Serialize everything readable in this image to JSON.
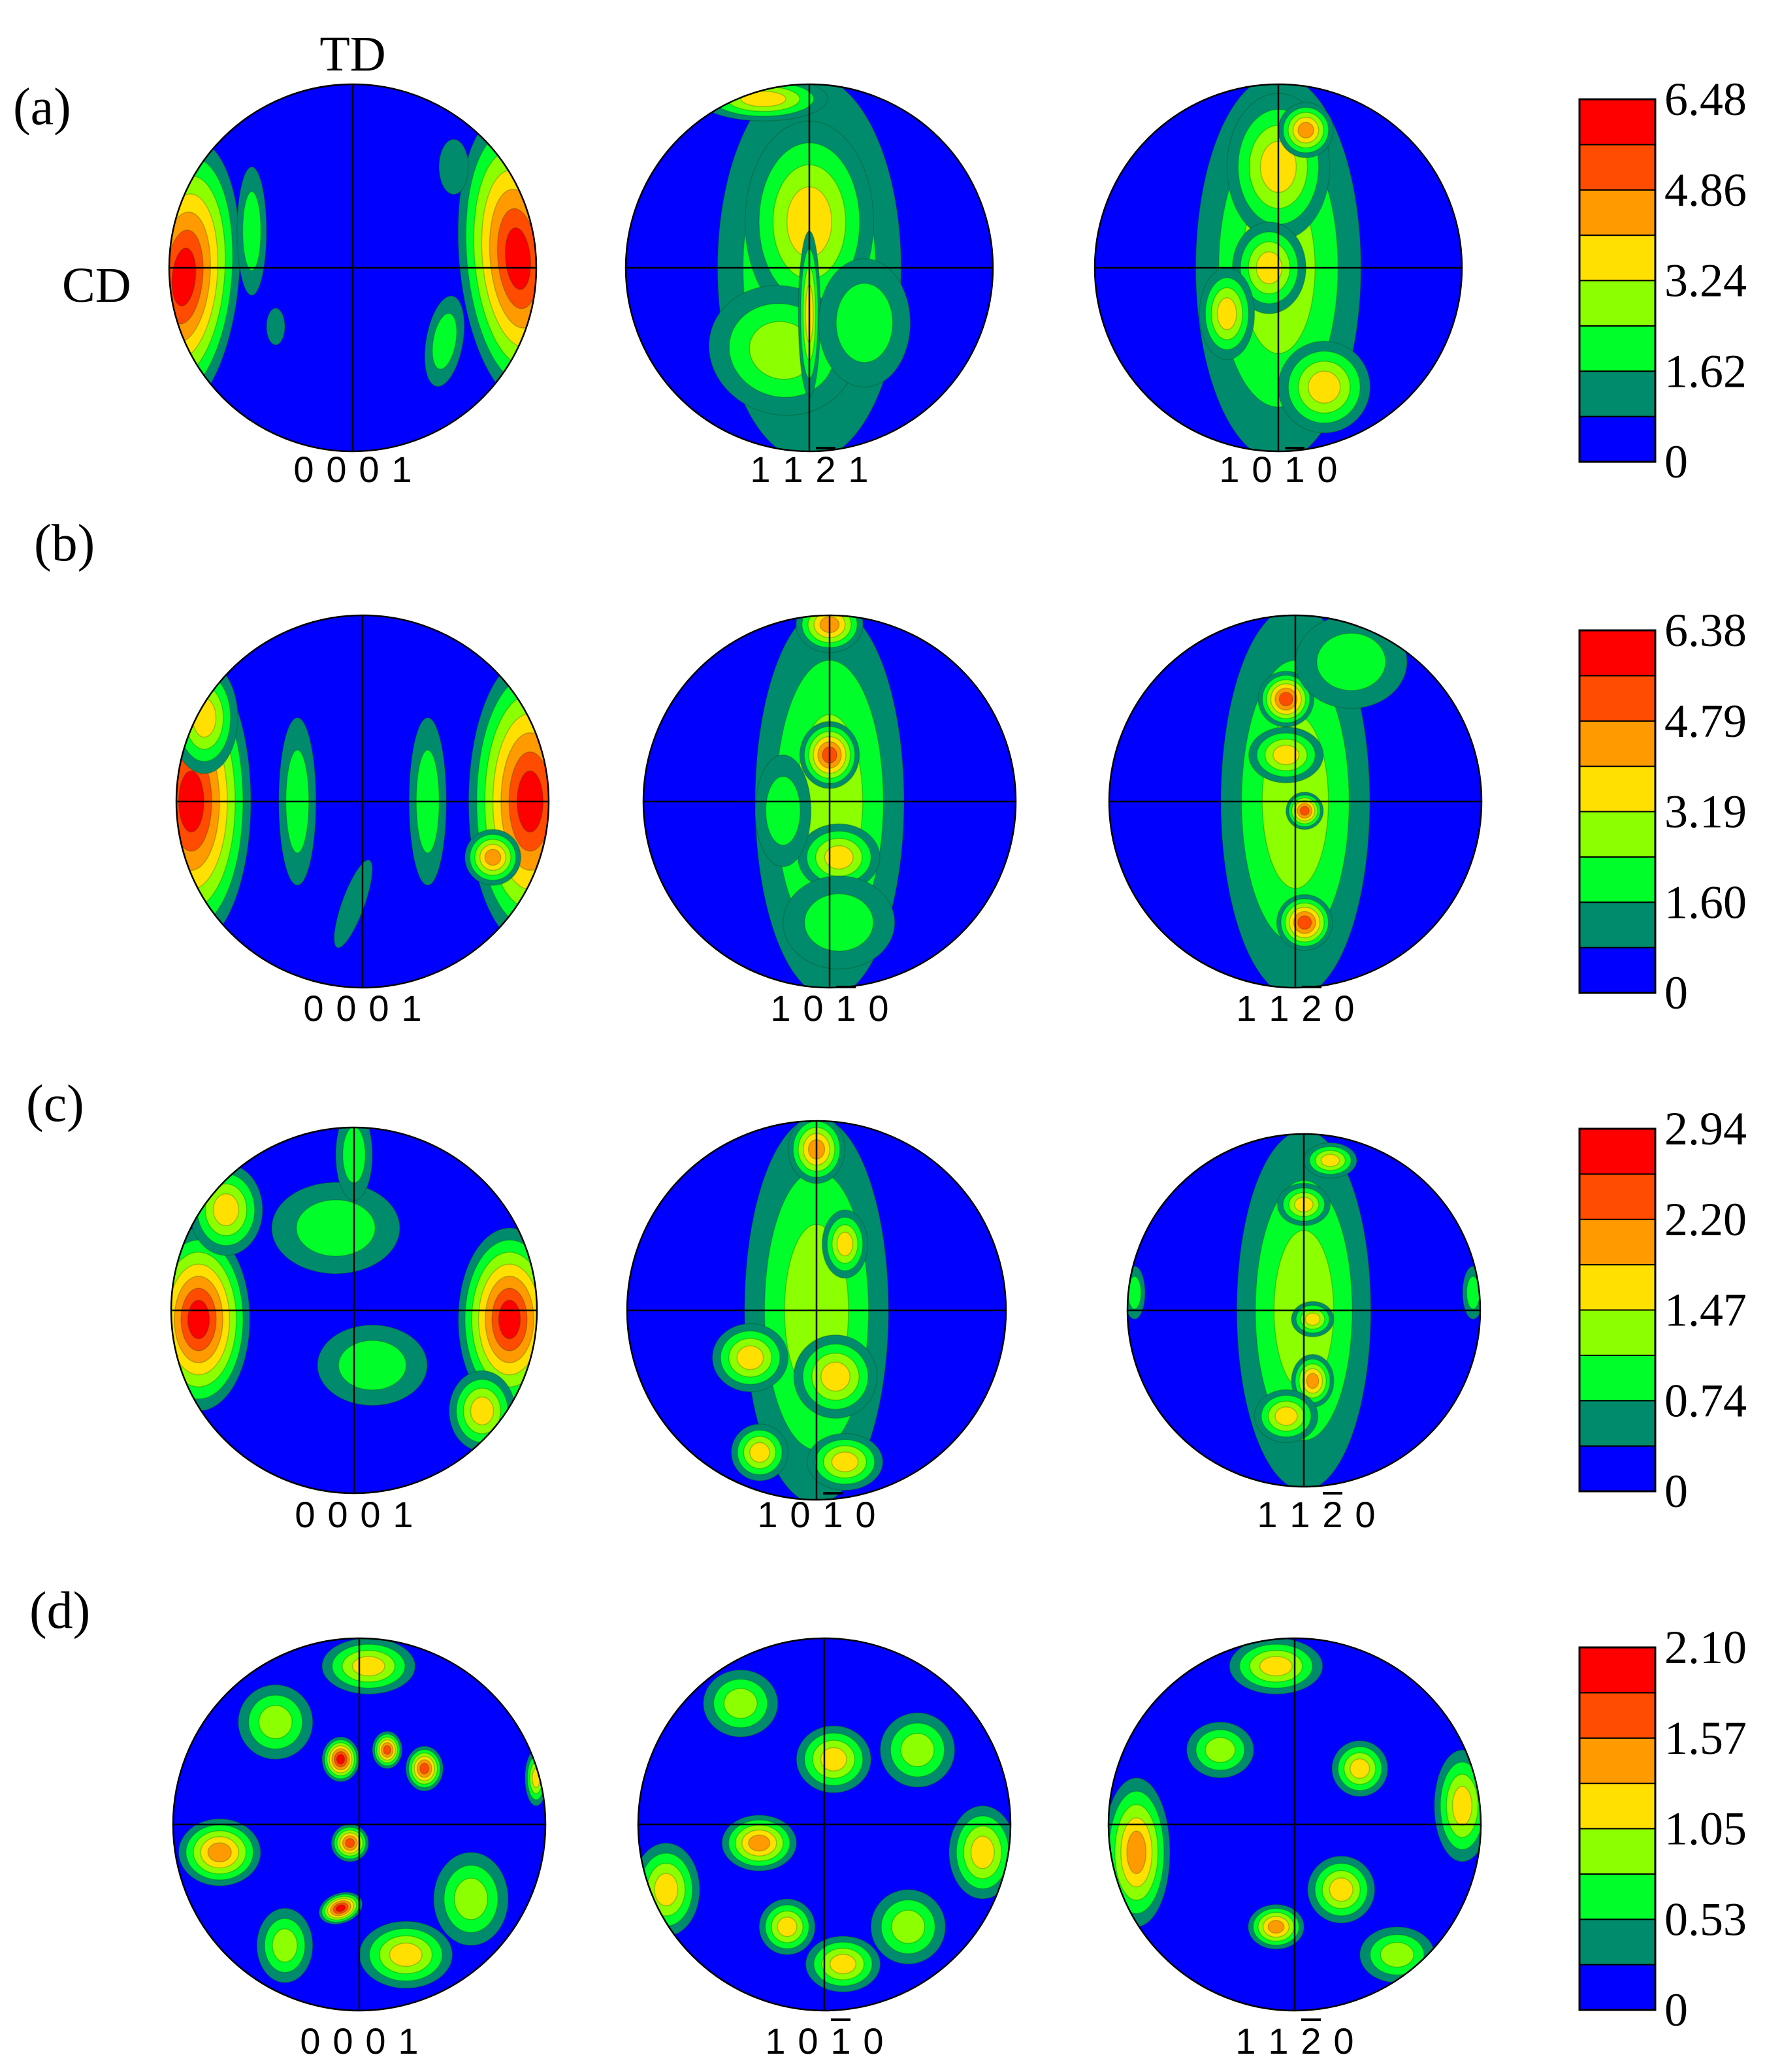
{
  "axes_labels": {
    "td": "TD",
    "cd": "CD"
  },
  "colors": {
    "levels": [
      "#0000ff",
      "#008c6c",
      "#00ff2a",
      "#8cff00",
      "#ffe000",
      "#ff9a00",
      "#ff4c00",
      "#ff0000"
    ],
    "grid_line": "#000000",
    "background": "#ffffff"
  },
  "rows": [
    {
      "label": "(a)",
      "pole_figures": [
        {
          "h": "0",
          "k": "0",
          "i": "0",
          "l": "1",
          "bar_index": null
        },
        {
          "h": "1",
          "k": "1",
          "i": "2",
          "l": "1",
          "bar_index": 2
        },
        {
          "h": "1",
          "k": "0",
          "i": "1",
          "l": "0",
          "bar_index": 2
        }
      ],
      "legend": {
        "ticks": [
          "6.48",
          "4.86",
          "3.24",
          "1.62",
          "0"
        ]
      }
    },
    {
      "label": "(b)",
      "pole_figures": [
        {
          "h": "0",
          "k": "0",
          "i": "0",
          "l": "1",
          "bar_index": null
        },
        {
          "h": "1",
          "k": "0",
          "i": "1",
          "l": "0",
          "bar_index": 2
        },
        {
          "h": "1",
          "k": "1",
          "i": "2",
          "l": "0",
          "bar_index": 2
        }
      ],
      "legend": {
        "ticks": [
          "6.38",
          "4.79",
          "3.19",
          "1.60",
          "0"
        ]
      }
    },
    {
      "label": "(c)",
      "pole_figures": [
        {
          "h": "0",
          "k": "0",
          "i": "0",
          "l": "1",
          "bar_index": null
        },
        {
          "h": "1",
          "k": "0",
          "i": "1",
          "l": "0",
          "bar_index": 2
        },
        {
          "h": "1",
          "k": "1",
          "i": "2",
          "l": "0",
          "bar_index": 2
        }
      ],
      "legend": {
        "ticks": [
          "2.94",
          "2.20",
          "1.47",
          "0.74",
          "0"
        ]
      }
    },
    {
      "label": "(d)",
      "pole_figures": [
        {
          "h": "0",
          "k": "0",
          "i": "0",
          "l": "1",
          "bar_index": null
        },
        {
          "h": "1",
          "k": "0",
          "i": "1",
          "l": "0",
          "bar_index": 2
        },
        {
          "h": "1",
          "k": "1",
          "i": "2",
          "l": "0",
          "bar_index": 2
        }
      ],
      "legend": {
        "ticks": [
          "2.10",
          "1.57",
          "1.05",
          "0.53",
          "0"
        ]
      }
    }
  ]
}
